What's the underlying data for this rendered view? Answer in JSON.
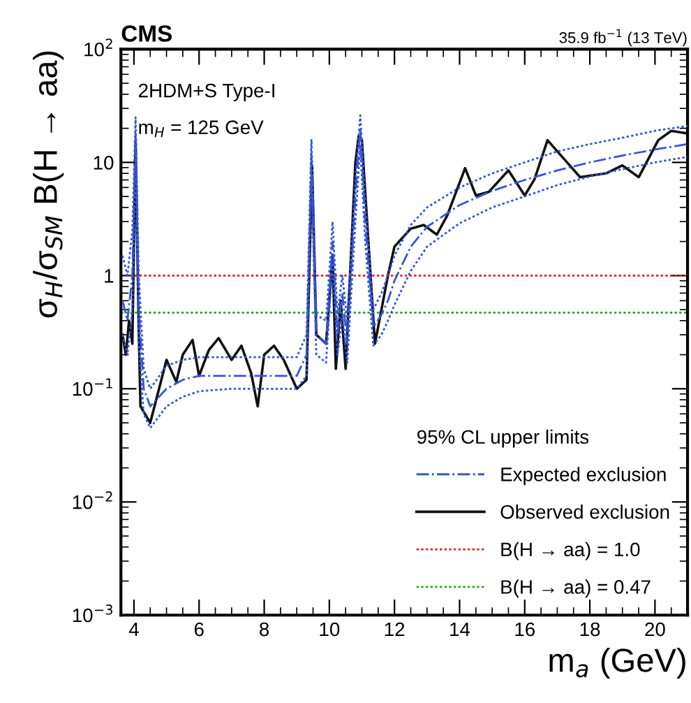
{
  "chart_data": {
    "type": "line",
    "xlabel": "m$_{a}$ (GeV)",
    "ylabel": "σ$_{H}$/σ$_{SM}$ B(H → aa)",
    "legend_title": "95% CL upper limits",
    "legend": "bottom right",
    "log": "y",
    "grid": false,
    "marker": "none",
    "xlim": [
      3.6,
      21
    ],
    "xticks": [
      4,
      6,
      8,
      10,
      12,
      14,
      16,
      18,
      20
    ],
    "ylim": [
      0.001,
      100
    ],
    "yticks": [
      {
        "value": 0.001,
        "label": "10$^{−3}$"
      },
      {
        "value": 0.01,
        "label": "10$^{−2}$"
      },
      {
        "value": 0.1,
        "label": "10$^{−1}$"
      },
      {
        "value": 1,
        "label": "1"
      },
      {
        "value": 10,
        "label": "10"
      },
      {
        "value": 100,
        "label": "10$^{2}$"
      }
    ],
    "annotations": [
      "CMS",
      "35.9 fb$^{−1}$ (13 TeV)",
      "2HDM+S Type-I",
      "m$_{H}$ = 125 GeV"
    ],
    "ref_lines": [
      {
        "axis": "y",
        "value": 1.0,
        "label": "B(H → aa) = 1.0",
        "color": "#dd2222",
        "line_style": "dotted"
      },
      {
        "axis": "y",
        "value": 0.47,
        "label": "B(H → aa) = 0.47",
        "color": "#22aa22",
        "line_style": "dotted"
      }
    ],
    "series": [
      {
        "name": "Expected exclusion",
        "color": "#3355dd",
        "line_style": "dashed",
        "x": [
          3.65,
          3.8,
          3.95,
          4.05,
          4.15,
          4.3,
          4.5,
          5.0,
          5.5,
          6,
          7,
          8,
          9,
          9.3,
          9.45,
          9.6,
          9.9,
          10.1,
          10.25,
          10.4,
          10.55,
          10.8,
          10.95,
          11.1,
          11.35,
          11.6,
          11.8,
          12,
          12.5,
          13,
          14,
          15,
          16,
          17,
          18,
          19,
          20,
          21
        ],
        "values": [
          0.6,
          0.4,
          1,
          18,
          0.5,
          0.1,
          0.07,
          0.1,
          0.12,
          0.13,
          0.13,
          0.13,
          0.13,
          0.2,
          12,
          0.3,
          0.25,
          2,
          0.3,
          0.7,
          0.25,
          5,
          20,
          3,
          0.35,
          0.45,
          0.6,
          0.9,
          1.8,
          2.7,
          4.2,
          5.6,
          7,
          8.5,
          10,
          11.5,
          13,
          14.5
        ]
      },
      {
        "color": "#3355dd",
        "line_style": "dotted",
        "x": [
          3.65,
          3.8,
          3.95,
          4.05,
          4.15,
          4.3,
          4.5,
          5.0,
          5.5,
          6,
          7,
          8,
          9,
          9.3,
          9.45,
          9.6,
          9.9,
          10.1,
          10.25,
          10.4,
          10.55,
          10.8,
          10.95,
          11.1,
          11.35,
          11.6,
          11.8,
          12,
          12.5,
          13,
          14,
          15,
          16,
          17,
          18,
          19,
          20,
          21
        ],
        "values": [
          1.5,
          1,
          2.5,
          25,
          1,
          0.15,
          0.1,
          0.16,
          0.18,
          0.19,
          0.19,
          0.19,
          0.19,
          0.3,
          16,
          0.45,
          0.4,
          3,
          0.45,
          1,
          0.4,
          7,
          26,
          4.5,
          0.5,
          0.7,
          1,
          1.5,
          2.8,
          4,
          6,
          8,
          10,
          12.5,
          14.5,
          16.5,
          19,
          21
        ]
      },
      {
        "color": "#3355dd",
        "line_style": "dotted",
        "x": [
          3.65,
          3.8,
          3.95,
          4.05,
          4.15,
          4.3,
          4.5,
          5.0,
          5.5,
          6,
          7,
          8,
          9,
          9.3,
          9.45,
          9.6,
          9.9,
          10.1,
          10.25,
          10.4,
          10.55,
          10.8,
          10.95,
          11.1,
          11.35,
          11.6,
          11.8,
          12,
          12.5,
          13,
          14,
          15,
          16,
          17,
          18,
          19,
          20,
          21
        ],
        "values": [
          0.3,
          0.2,
          0.5,
          12,
          0.25,
          0.06,
          0.045,
          0.07,
          0.085,
          0.095,
          0.1,
          0.1,
          0.1,
          0.13,
          8,
          0.2,
          0.17,
          1.3,
          0.2,
          0.45,
          0.17,
          3,
          14,
          2,
          0.24,
          0.3,
          0.4,
          0.55,
          1.1,
          1.8,
          2.9,
          4,
          5,
          6.3,
          7.5,
          8.7,
          10,
          11.2
        ]
      },
      {
        "name": "Observed exclusion",
        "color": "#111111",
        "line_style": "solid",
        "x": [
          3.65,
          3.75,
          3.85,
          3.95,
          4.05,
          4.15,
          4.2,
          4.5,
          5.0,
          5.3,
          5.5,
          5.8,
          6.0,
          6.3,
          6.6,
          7.0,
          7.3,
          7.6,
          7.8,
          8.0,
          8.3,
          8.6,
          9.0,
          9.3,
          9.47,
          9.6,
          9.9,
          10.1,
          10.2,
          10.35,
          10.5,
          10.8,
          10.9,
          11.0,
          11.4,
          11.8,
          12.0,
          12.5,
          12.9,
          13.3,
          13.62,
          14.17,
          14.5,
          14.9,
          15.5,
          16.0,
          16.3,
          16.7,
          17.3,
          17.7,
          18.5,
          19.0,
          19.5,
          20.1,
          20.5,
          21.0
        ],
        "values": [
          0.3,
          0.2,
          0.4,
          0.25,
          15,
          0.3,
          0.07,
          0.05,
          0.18,
          0.115,
          0.2,
          0.27,
          0.13,
          0.22,
          0.28,
          0.18,
          0.24,
          0.137,
          0.07,
          0.2,
          0.24,
          0.18,
          0.1,
          0.12,
          9.4,
          0.3,
          0.25,
          1.5,
          0.15,
          0.6,
          0.15,
          10,
          17,
          15.7,
          0.25,
          1.0,
          1.8,
          2.6,
          2.8,
          2.3,
          3.4,
          8.9,
          5.1,
          5.5,
          8.5,
          5.1,
          7.1,
          15.7,
          10,
          7.4,
          8,
          9.4,
          7.4,
          15.7,
          19,
          18
        ]
      }
    ]
  }
}
